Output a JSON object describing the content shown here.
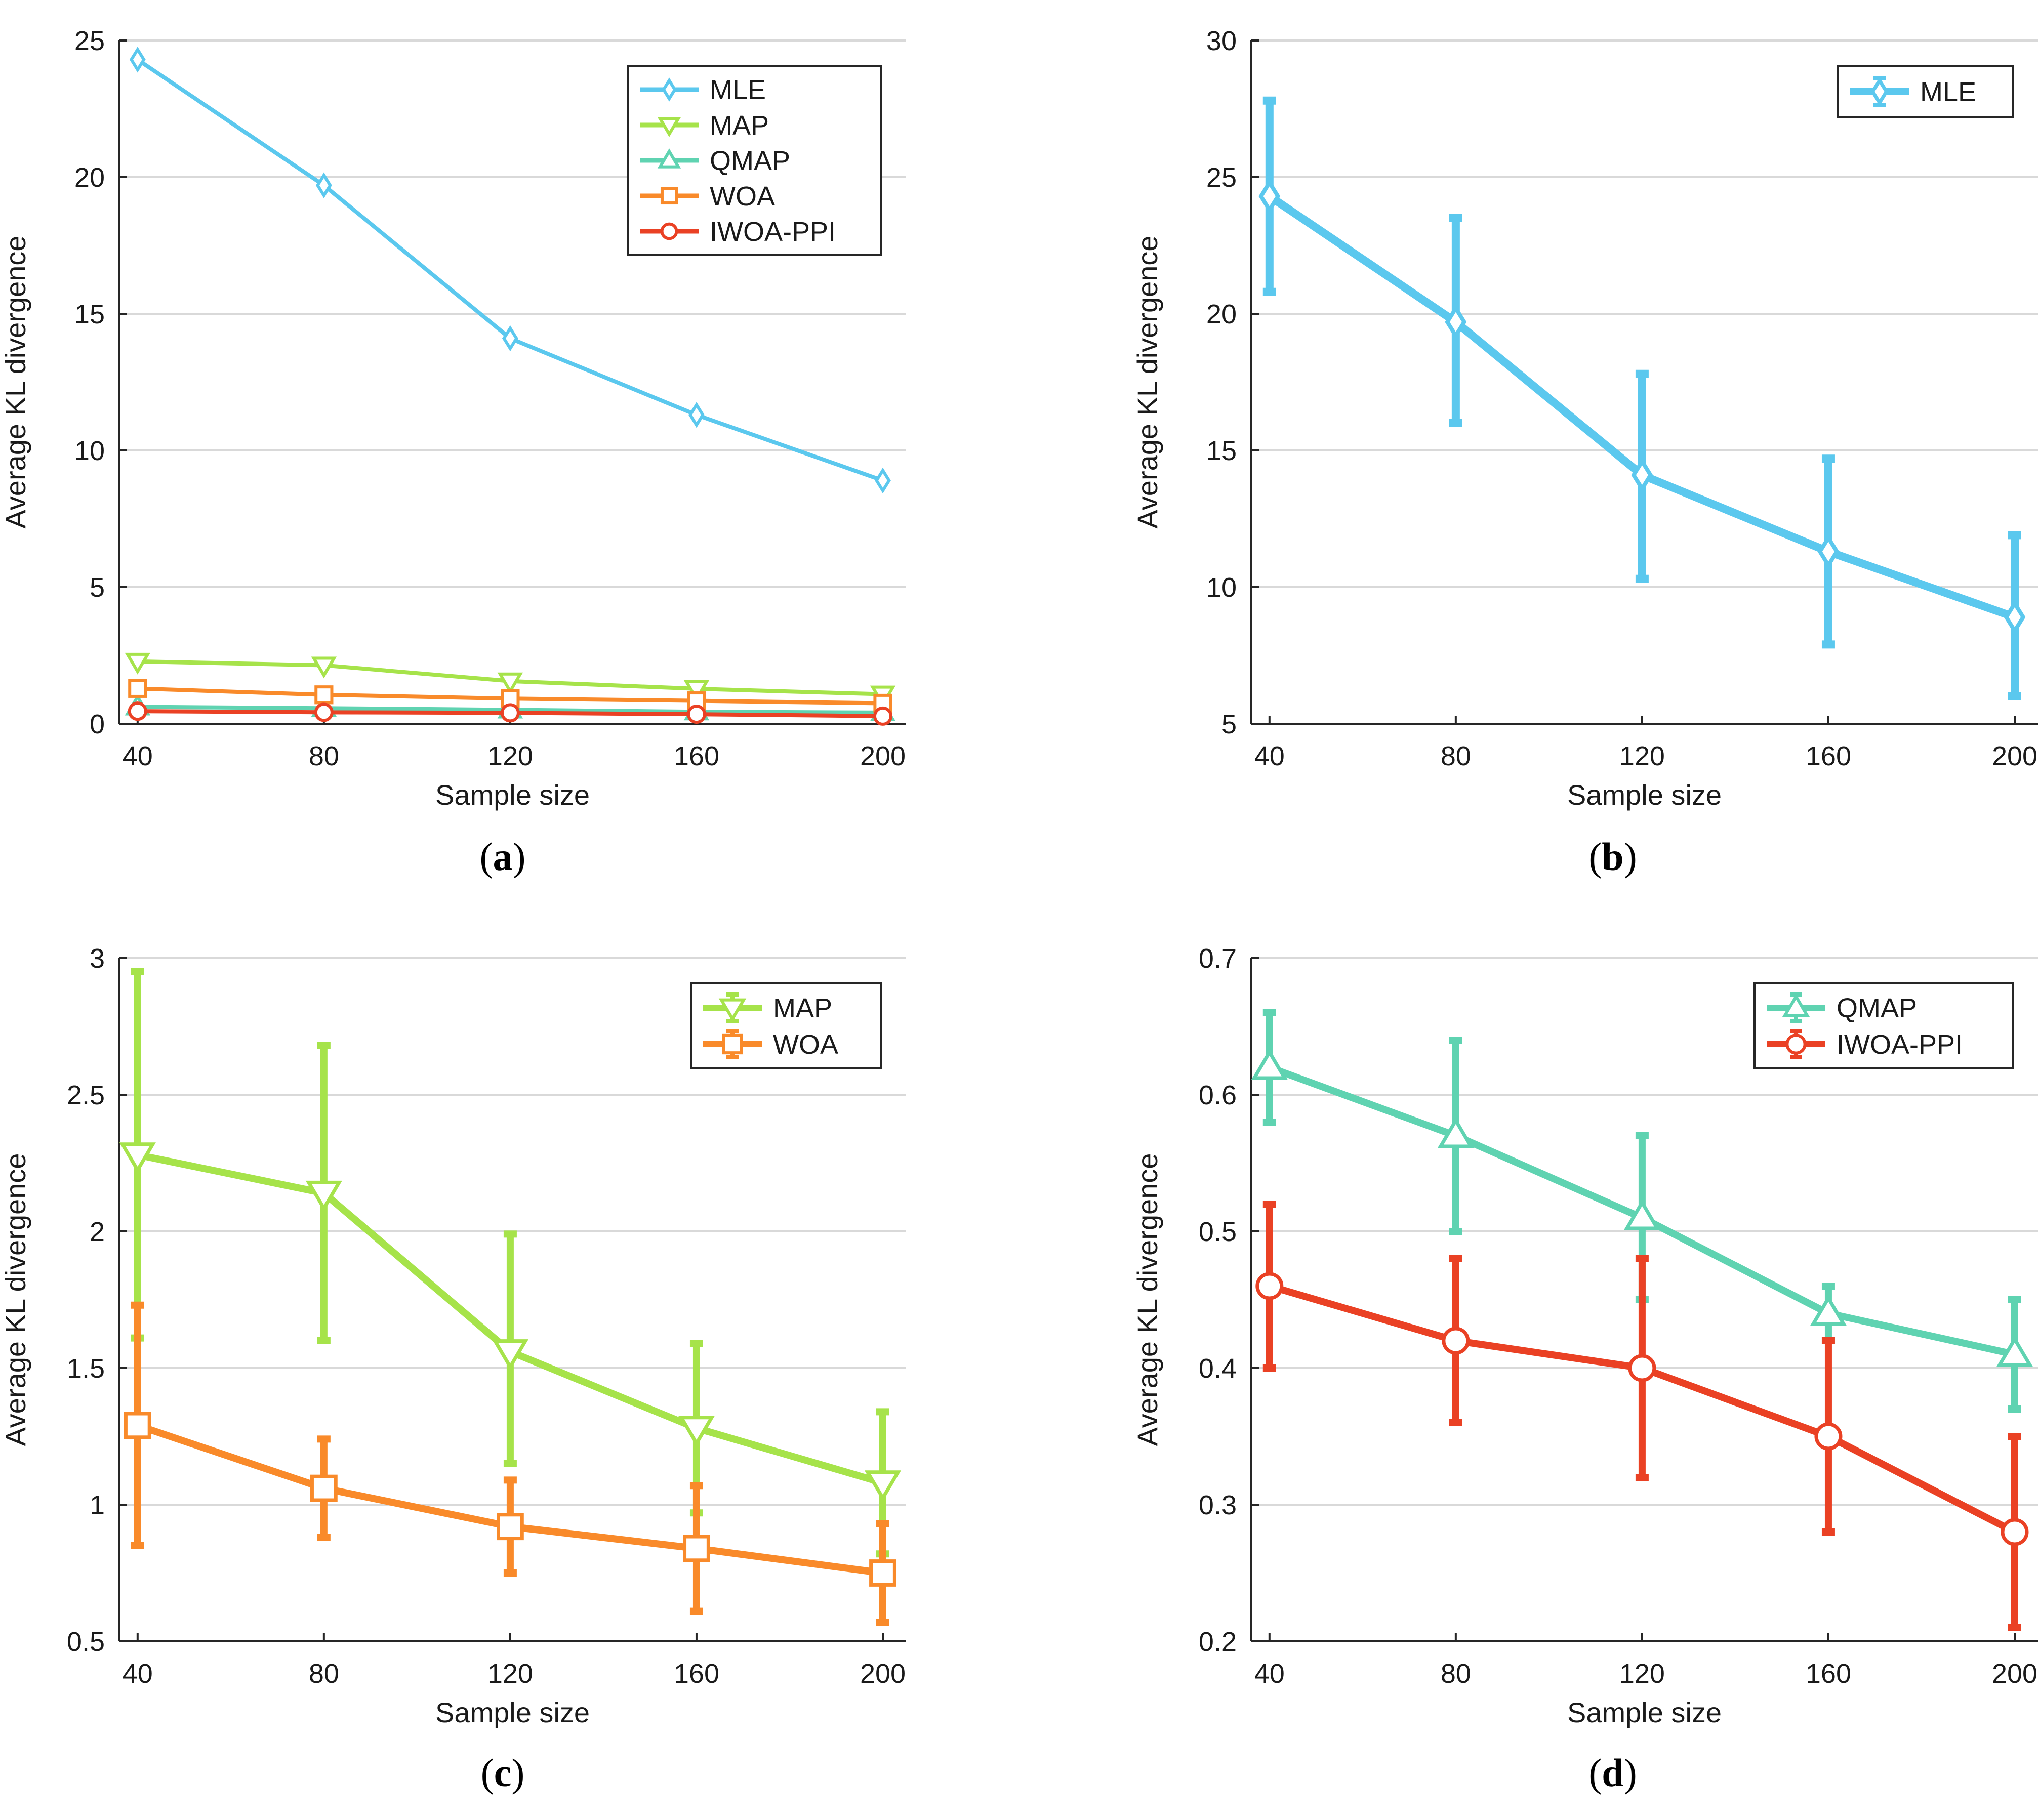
{
  "colors": {
    "MLE": "#5bc8ee",
    "MAP": "#a6e34a",
    "QMAP": "#5fd3b1",
    "WOA": "#f98a2a",
    "IWOA-PPI": "#ea4124",
    "grid": "#d9d9d9",
    "axis": "#262626"
  },
  "chart_data": [
    {
      "panel": "a",
      "caption_letter": "a",
      "type": "line",
      "title": "",
      "xlabel": "Sample size",
      "ylabel": "Average KL divergence",
      "x": [
        40,
        80,
        120,
        160,
        200
      ],
      "xticks": [
        "40",
        "80",
        "120",
        "160",
        "200"
      ],
      "xlim": [
        36,
        205
      ],
      "ylim": [
        0,
        25
      ],
      "yticks": [
        0,
        5,
        10,
        15,
        20,
        25
      ],
      "ytick_labels": [
        "0",
        "5",
        "10",
        "15",
        "20",
        "25"
      ],
      "grid": true,
      "legend_position": "top-right",
      "error_bars": false,
      "series": [
        {
          "name": "MLE",
          "marker": "diamond",
          "values": [
            24.3,
            19.7,
            14.1,
            11.3,
            8.9
          ]
        },
        {
          "name": "MAP",
          "marker": "triangle-down",
          "values": [
            2.28,
            2.14,
            1.56,
            1.28,
            1.08
          ]
        },
        {
          "name": "QMAP",
          "marker": "triangle-up",
          "values": [
            0.62,
            0.57,
            0.51,
            0.44,
            0.41
          ]
        },
        {
          "name": "WOA",
          "marker": "square",
          "values": [
            1.29,
            1.06,
            0.92,
            0.84,
            0.75
          ]
        },
        {
          "name": "IWOA-PPI",
          "marker": "circle",
          "values": [
            0.46,
            0.42,
            0.4,
            0.35,
            0.28
          ]
        }
      ]
    },
    {
      "panel": "b",
      "caption_letter": "b",
      "type": "line",
      "title": "",
      "xlabel": "Sample size",
      "ylabel": "Average KL divergence",
      "x": [
        40,
        80,
        120,
        160,
        200
      ],
      "xticks": [
        "40",
        "80",
        "120",
        "160",
        "200"
      ],
      "xlim": [
        36,
        205
      ],
      "ylim": [
        5,
        30
      ],
      "yticks": [
        5,
        10,
        15,
        20,
        25,
        30
      ],
      "ytick_labels": [
        "5",
        "10",
        "15",
        "20",
        "25",
        "30"
      ],
      "grid": true,
      "legend_position": "top-right",
      "error_bars": true,
      "series": [
        {
          "name": "MLE",
          "marker": "diamond",
          "values": [
            24.3,
            19.7,
            14.1,
            11.3,
            8.9
          ],
          "lower": [
            20.8,
            16.0,
            10.3,
            7.9,
            6.0
          ],
          "upper": [
            27.8,
            23.5,
            17.8,
            14.7,
            11.9
          ]
        }
      ]
    },
    {
      "panel": "c",
      "caption_letter": "c",
      "type": "line",
      "title": "",
      "xlabel": "Sample size",
      "ylabel": "Average KL divergence",
      "x": [
        40,
        80,
        120,
        160,
        200
      ],
      "xticks": [
        "40",
        "80",
        "120",
        "160",
        "200"
      ],
      "xlim": [
        36,
        205
      ],
      "ylim": [
        0.5,
        3
      ],
      "yticks": [
        0.5,
        1,
        1.5,
        2,
        2.5,
        3
      ],
      "ytick_labels": [
        "0.5",
        "1",
        "1.5",
        "2",
        "2.5",
        "3"
      ],
      "grid": true,
      "legend_position": "top-right",
      "error_bars": true,
      "series": [
        {
          "name": "MAP",
          "marker": "triangle-down",
          "values": [
            2.28,
            2.14,
            1.56,
            1.28,
            1.08
          ],
          "lower": [
            1.61,
            1.6,
            1.15,
            0.97,
            0.82
          ],
          "upper": [
            2.95,
            2.68,
            1.99,
            1.59,
            1.34
          ]
        },
        {
          "name": "WOA",
          "marker": "square",
          "values": [
            1.29,
            1.06,
            0.92,
            0.84,
            0.75
          ],
          "lower": [
            0.85,
            0.88,
            0.75,
            0.61,
            0.57
          ],
          "upper": [
            1.73,
            1.24,
            1.09,
            1.07,
            0.93
          ]
        }
      ]
    },
    {
      "panel": "d",
      "caption_letter": "d",
      "type": "line",
      "title": "",
      "xlabel": "Sample size",
      "ylabel": "Average KL divergence",
      "x": [
        40,
        80,
        120,
        160,
        200
      ],
      "xticks": [
        "40",
        "80",
        "120",
        "160",
        "200"
      ],
      "xlim": [
        36,
        205
      ],
      "ylim": [
        0.2,
        0.7
      ],
      "yticks": [
        0.2,
        0.3,
        0.4,
        0.5,
        0.6,
        0.7
      ],
      "ytick_labels": [
        "0.2",
        "0.3",
        "0.4",
        "0.5",
        "0.6",
        "0.7"
      ],
      "grid": true,
      "legend_position": "top-right",
      "error_bars": true,
      "series": [
        {
          "name": "QMAP",
          "marker": "triangle-up",
          "values": [
            0.62,
            0.57,
            0.51,
            0.44,
            0.41
          ],
          "lower": [
            0.58,
            0.5,
            0.45,
            0.42,
            0.37
          ],
          "upper": [
            0.66,
            0.64,
            0.57,
            0.46,
            0.45
          ]
        },
        {
          "name": "IWOA-PPI",
          "marker": "circle",
          "values": [
            0.46,
            0.42,
            0.4,
            0.35,
            0.28
          ],
          "lower": [
            0.4,
            0.36,
            0.32,
            0.28,
            0.21
          ],
          "upper": [
            0.52,
            0.48,
            0.48,
            0.42,
            0.35
          ]
        }
      ]
    }
  ]
}
